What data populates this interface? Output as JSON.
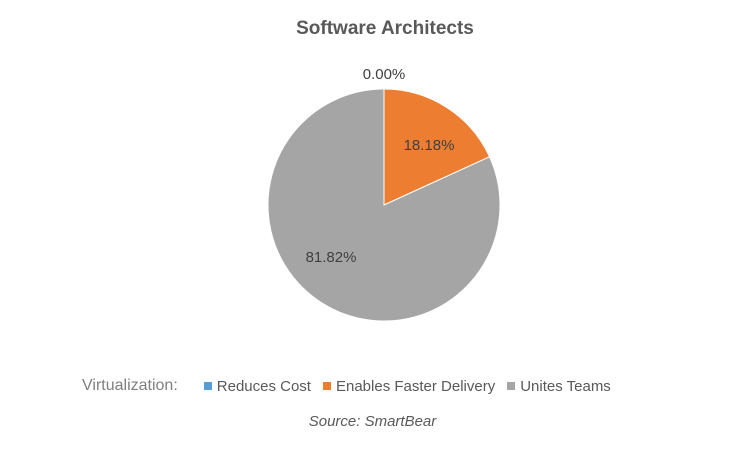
{
  "chart_data": {
    "type": "pie",
    "title": "Software Architects",
    "categories": [
      "Reduces Cost",
      "Enables Faster Delivery",
      "Unites Teams"
    ],
    "values": [
      0.0,
      18.18,
      81.82
    ],
    "labels": [
      "0.00%",
      "18.18%",
      "81.82%"
    ],
    "colors": [
      "#5B9BD5",
      "#ED7D31",
      "#A5A5A5"
    ],
    "legend_title": "Virtualization:",
    "legend_position": "bottom",
    "source": "Source: SmartBear"
  }
}
